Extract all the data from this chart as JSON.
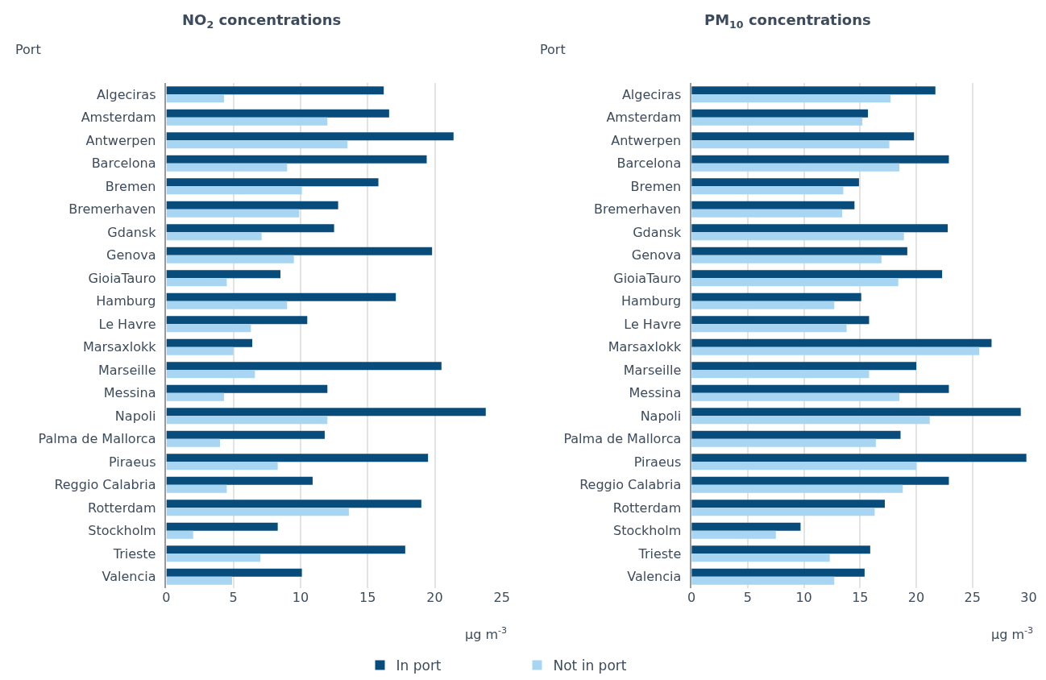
{
  "chart_data": [
    {
      "type": "bar",
      "orientation": "horizontal",
      "title": "NO$_{2}$ concentrations",
      "ylabel": "Port",
      "xlabel": "µg m$^{-3}$",
      "categories": [
        "Algeciras",
        "Amsterdam",
        "Antwerpen",
        "Barcelona",
        "Bremen",
        "Bremerhaven",
        "Gdansk",
        "Genova",
        "GioiaTauro",
        "Hamburg",
        "Le Havre",
        "Marsaxlokk",
        "Marseille",
        "Messina",
        "Napoli",
        "Palma de Mallorca",
        "Piraeus",
        "Reggio Calabria",
        "Rotterdam",
        "Stockholm",
        "Trieste",
        "Valencia"
      ],
      "series": [
        {
          "name": "In port",
          "color": "#084c7c",
          "values": [
            16.2,
            16.6,
            21.4,
            19.4,
            15.8,
            12.8,
            12.5,
            19.8,
            8.5,
            17.1,
            10.5,
            6.4,
            20.5,
            12.0,
            23.8,
            11.8,
            19.5,
            10.9,
            19.0,
            8.3,
            17.8,
            10.1
          ]
        },
        {
          "name": "Not in port",
          "color": "#a7d5f2",
          "values": [
            4.3,
            12.0,
            13.5,
            9.0,
            10.1,
            9.9,
            7.1,
            9.5,
            4.5,
            9.0,
            6.3,
            5.0,
            6.6,
            4.3,
            12.0,
            4.0,
            8.3,
            4.5,
            13.6,
            2.0,
            7.0,
            4.9
          ]
        }
      ],
      "xlim": [
        0,
        25
      ],
      "xticks": [
        0,
        5,
        10,
        15,
        20,
        25
      ],
      "grid": "x",
      "legend": "bottom"
    },
    {
      "type": "bar",
      "orientation": "horizontal",
      "title": "PM$_{10}$ concentrations",
      "ylabel": "Port",
      "xlabel": "µg m$^{-3}$",
      "categories": [
        "Algeciras",
        "Amsterdam",
        "Antwerpen",
        "Barcelona",
        "Bremen",
        "Bremerhaven",
        "Gdansk",
        "Genova",
        "GioiaTauro",
        "Hamburg",
        "Le Havre",
        "Marsaxlokk",
        "Marseille",
        "Messina",
        "Napoli",
        "Palma de Mallorca",
        "Piraeus",
        "Reggio Calabria",
        "Rotterdam",
        "Stockholm",
        "Trieste",
        "Valencia"
      ],
      "series": [
        {
          "name": "In port",
          "color": "#084c7c",
          "values": [
            21.7,
            15.7,
            19.8,
            22.9,
            14.9,
            14.5,
            22.8,
            19.2,
            22.3,
            15.1,
            15.8,
            26.7,
            20.0,
            22.9,
            29.3,
            18.6,
            29.8,
            22.9,
            17.2,
            9.7,
            15.9,
            15.4
          ]
        },
        {
          "name": "Not in port",
          "color": "#a7d5f2",
          "values": [
            17.7,
            15.2,
            17.6,
            18.5,
            13.5,
            13.4,
            18.9,
            16.9,
            18.4,
            12.7,
            13.8,
            25.6,
            15.8,
            18.5,
            21.2,
            16.4,
            20.0,
            18.8,
            16.3,
            7.5,
            12.3,
            12.7
          ]
        }
      ],
      "xlim": [
        0,
        30
      ],
      "xticks": [
        0,
        5,
        10,
        15,
        20,
        25,
        30
      ],
      "grid": "x",
      "legend": "bottom"
    }
  ]
}
